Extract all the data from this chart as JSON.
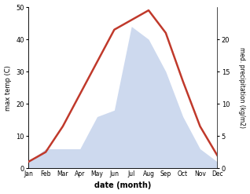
{
  "months": [
    "Jan",
    "Feb",
    "Mar",
    "Apr",
    "May",
    "Jun",
    "Jul",
    "Aug",
    "Sep",
    "Oct",
    "Nov",
    "Dec"
  ],
  "temperature": [
    2,
    5,
    13,
    23,
    33,
    43,
    46,
    49,
    42,
    27,
    13,
    4
  ],
  "precipitation": [
    1,
    3,
    3,
    3,
    8,
    9,
    22,
    20,
    15,
    8,
    3,
    1
  ],
  "temp_color": "#c0392b",
  "precip_color": "#b8c9e8",
  "left_ylabel": "max temp (C)",
  "right_ylabel": "med. precipitation (kg/m2)",
  "xlabel": "date (month)",
  "ylim_left": [
    0,
    50
  ],
  "ylim_right": [
    0,
    25
  ],
  "left_yticks": [
    0,
    10,
    20,
    30,
    40,
    50
  ],
  "right_yticks": [
    0,
    5,
    10,
    15,
    20
  ],
  "background_color": "#ffffff",
  "fig_width": 3.18,
  "fig_height": 2.47,
  "dpi": 100
}
